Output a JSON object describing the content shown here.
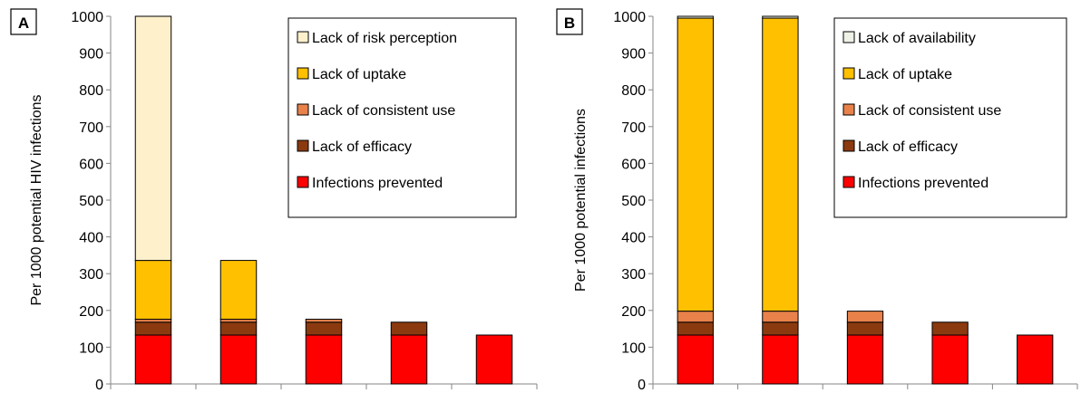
{
  "colors": {
    "infections_prevented": "#ff0000",
    "lack_of_efficacy": "#8b3a0f",
    "lack_of_consistent_use": "#e8824a",
    "lack_of_uptake": "#ffc000",
    "lack_of_risk_perception": "#fff0cc",
    "lack_of_availability": "#eef2e6"
  },
  "chart_data": [
    {
      "type": "bar",
      "stacked": true,
      "panel_label": "A",
      "ylabel": "Per 1000 potential HIV infections",
      "ylim": [
        0,
        1000
      ],
      "yticks": [
        "0",
        "100",
        "200",
        "300",
        "400",
        "500",
        "600",
        "700",
        "800",
        "900",
        "1000"
      ],
      "categories": [
        "",
        "",
        "",
        "",
        ""
      ],
      "legend_position": "top-right",
      "series": [
        {
          "name": "Infections prevented",
          "color_key": "infections_prevented",
          "values": [
            133,
            133,
            133,
            133,
            133
          ]
        },
        {
          "name": "Lack of efficacy",
          "color_key": "lack_of_efficacy",
          "values": [
            35,
            35,
            35,
            35,
            0
          ]
        },
        {
          "name": "Lack of consistent use",
          "color_key": "lack_of_consistent_use",
          "values": [
            8,
            8,
            8,
            0,
            0
          ]
        },
        {
          "name": "Lack of uptake",
          "color_key": "lack_of_uptake",
          "values": [
            160,
            160,
            0,
            0,
            0
          ]
        },
        {
          "name": "Lack of risk perception",
          "color_key": "lack_of_risk_perception",
          "values": [
            664,
            0,
            0,
            0,
            0
          ]
        }
      ]
    },
    {
      "type": "bar",
      "stacked": true,
      "panel_label": "B",
      "ylabel": "Per 1000 potential infections",
      "ylim": [
        0,
        1000
      ],
      "yticks": [
        "0",
        "100",
        "200",
        "300",
        "400",
        "500",
        "600",
        "700",
        "800",
        "900",
        "1000"
      ],
      "categories": [
        "",
        "",
        "",
        "",
        ""
      ],
      "legend_position": "top-right",
      "series": [
        {
          "name": "Infections prevented",
          "color_key": "infections_prevented",
          "values": [
            133,
            133,
            133,
            133,
            133
          ]
        },
        {
          "name": "Lack of efficacy",
          "color_key": "lack_of_efficacy",
          "values": [
            35,
            35,
            35,
            35,
            0
          ]
        },
        {
          "name": "Lack of consistent use",
          "color_key": "lack_of_consistent_use",
          "values": [
            30,
            30,
            30,
            0,
            0
          ]
        },
        {
          "name": "Lack of uptake",
          "color_key": "lack_of_uptake",
          "values": [
            797,
            797,
            0,
            0,
            0
          ]
        },
        {
          "name": "Lack of availability",
          "color_key": "lack_of_availability",
          "values": [
            5,
            5,
            0,
            0,
            0
          ]
        }
      ]
    }
  ]
}
